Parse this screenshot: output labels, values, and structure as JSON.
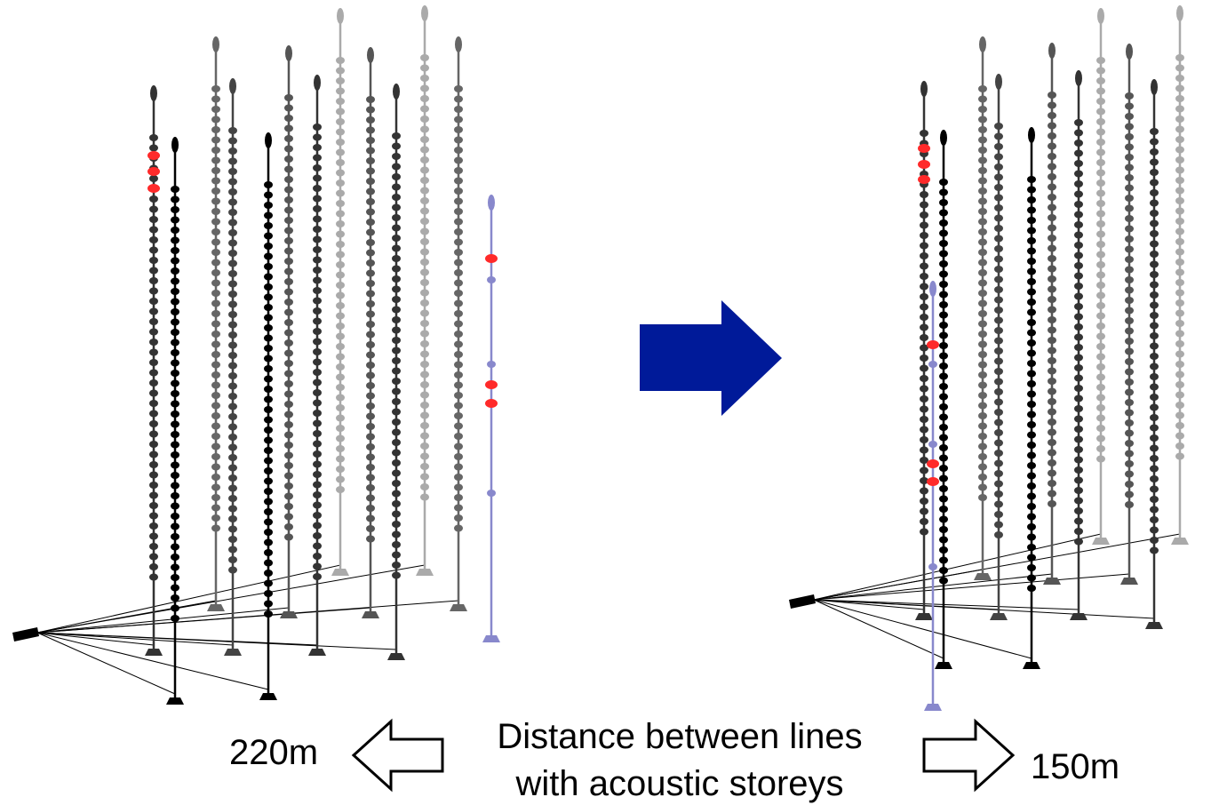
{
  "labels": {
    "left_distance": "220m",
    "caption": [
      "Distance between lines",
      "with acoustic storeys"
    ],
    "right_distance": "150m"
  }
}
